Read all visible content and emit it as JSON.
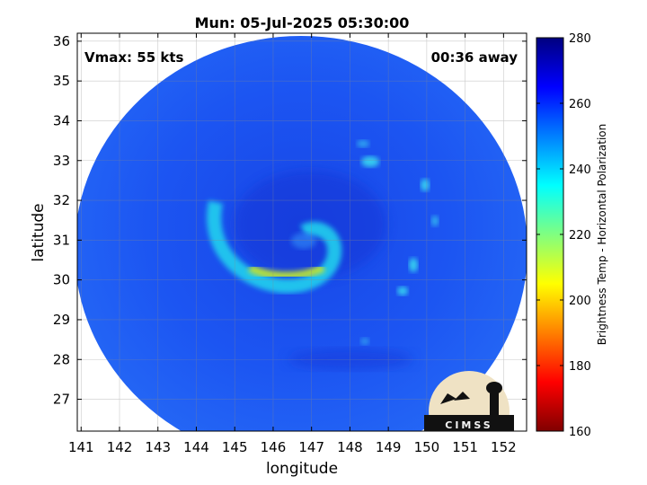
{
  "title": "Mun: 05-Jul-2025 05:30:00",
  "vmax_label": "Vmax: 55 kts",
  "time_away": "00:36 away",
  "x_axis": {
    "label": "longitude",
    "range": [
      140.9,
      152.6
    ],
    "ticks": [
      "141",
      "142",
      "143",
      "144",
      "145",
      "146",
      "147",
      "148",
      "149",
      "150",
      "151",
      "152"
    ],
    "tick_values": [
      141,
      142,
      143,
      144,
      145,
      146,
      147,
      148,
      149,
      150,
      151,
      152
    ]
  },
  "y_axis": {
    "label": "latitude",
    "range": [
      26.2,
      36.2
    ],
    "ticks": [
      "27",
      "28",
      "29",
      "30",
      "31",
      "32",
      "33",
      "34",
      "35",
      "36"
    ],
    "tick_values": [
      27,
      28,
      29,
      30,
      31,
      32,
      33,
      34,
      35,
      36
    ]
  },
  "colorbar": {
    "label": "Brightness Temp - Horizontal Polarization",
    "range": [
      160,
      280
    ],
    "ticks": [
      "280",
      "260",
      "240",
      "220",
      "200",
      "180",
      "160"
    ],
    "tick_values": [
      280,
      260,
      240,
      220,
      200,
      180,
      160
    ],
    "colormap": "jet"
  },
  "grid": true,
  "logo": {
    "text": "CIMSS",
    "name": "cimss-logo"
  },
  "colors": {
    "background_scan": "#1a4ff0",
    "band_cyan": "#22d8ee",
    "band_yellow": "#c8ee2a",
    "frame": "#000000"
  }
}
